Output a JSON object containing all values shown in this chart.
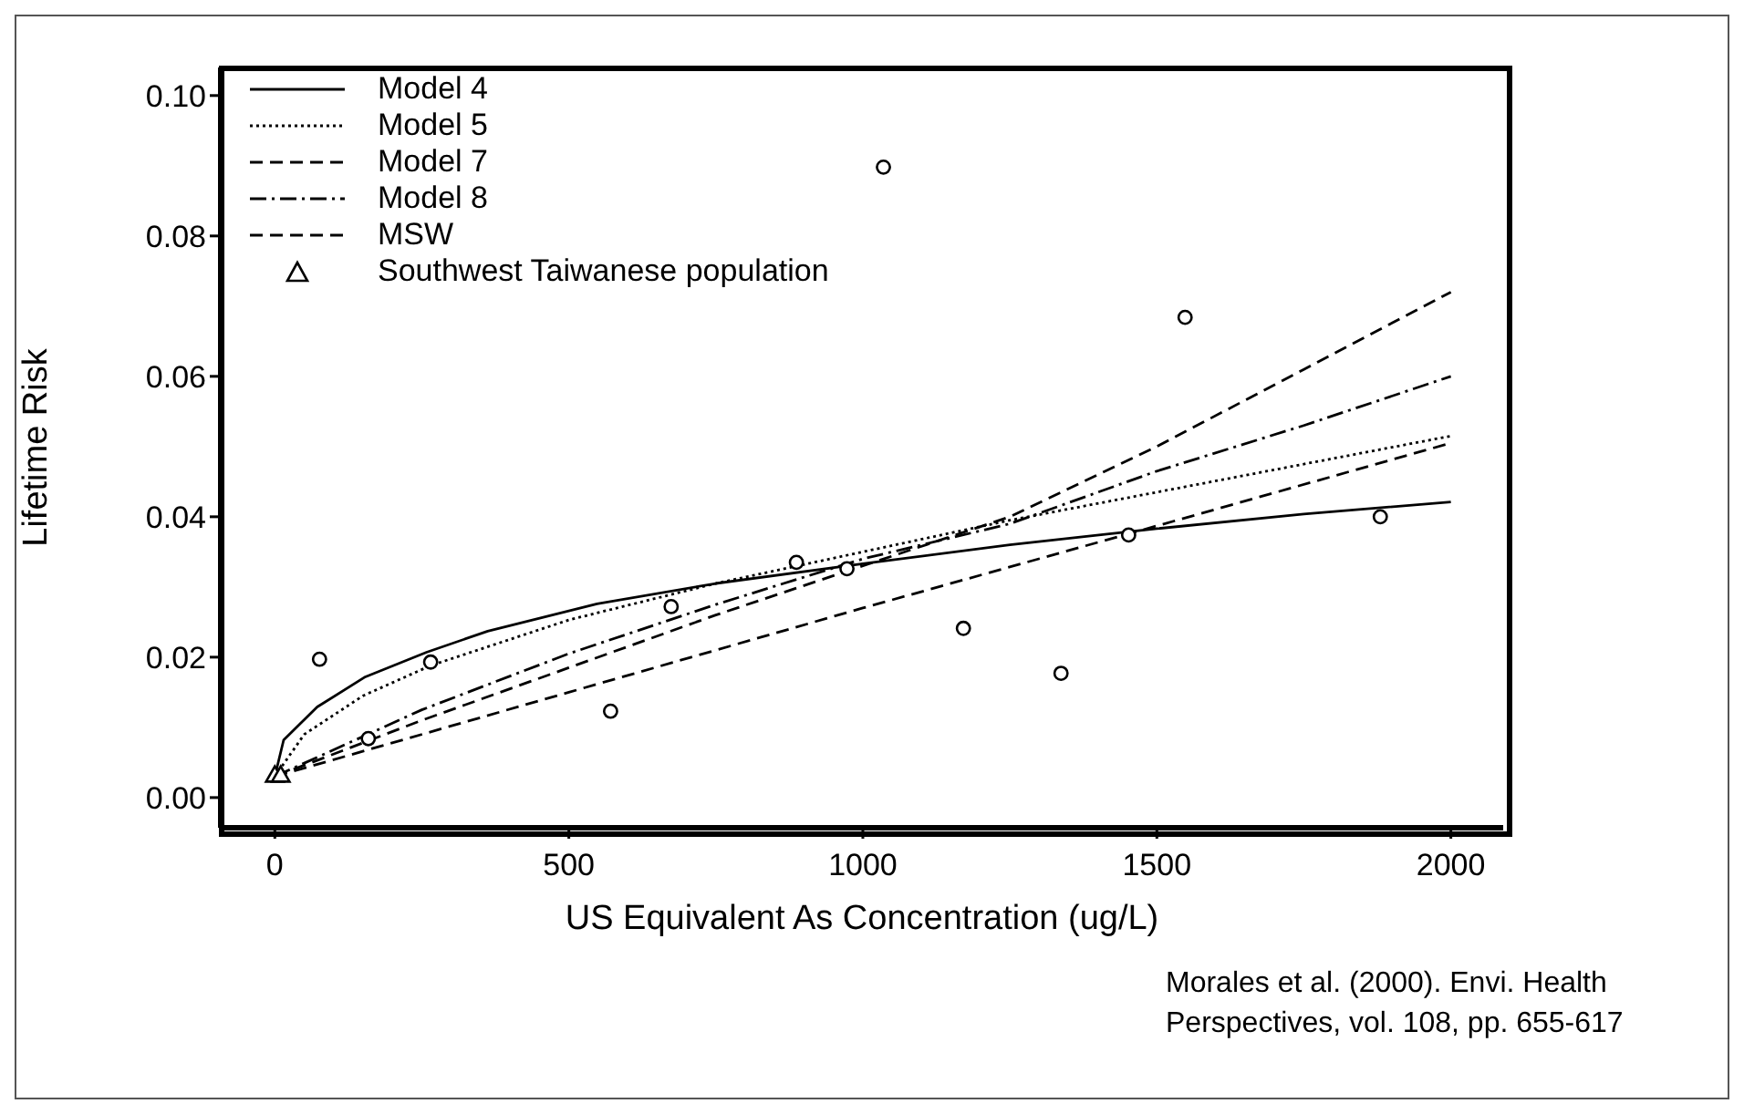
{
  "chart_data": {
    "type": "line",
    "xlabel": "US Equivalent As Concentration (ug/L)",
    "ylabel": "Lifetime Risk",
    "xlim": [
      -92,
      2089
    ],
    "ylim": [
      -0.0043,
      0.104
    ],
    "xticks": [
      0,
      500,
      1000,
      1500,
      2000
    ],
    "yticks": [
      {
        "value": 0,
        "label": "0.00"
      },
      {
        "value": 0.02,
        "label": "0.02"
      },
      {
        "value": 0.04,
        "label": "0.04"
      },
      {
        "value": 0.06,
        "label": "0.06"
      },
      {
        "value": 0.08,
        "label": "0.08"
      },
      {
        "value": 0.1,
        "label": "0.10"
      }
    ],
    "grid": false,
    "legend": "top left",
    "annotations": [
      "Morales et al. (2000). Envi. Health Perspectives, vol. 108, pp. 655-617"
    ],
    "series": [
      {
        "name": "Model 4",
        "type": "line",
        "color": "#000000",
        "line_style": "solid",
        "marker": "none",
        "x": [
          0,
          15,
          72,
          154,
          258,
          362,
          548,
          750,
          1000,
          1250,
          1500,
          1750,
          2000
        ],
        "values": [
          0.003,
          0.0082,
          0.0129,
          0.0172,
          0.0207,
          0.0237,
          0.0276,
          0.0305,
          0.0333,
          0.036,
          0.0383,
          0.0404,
          0.0421
        ]
      },
      {
        "name": "Model 5",
        "type": "line",
        "color": "#000000",
        "line_style": "dotted",
        "marker": "none",
        "x": [
          0,
          50,
          150,
          265,
          500,
          750,
          1000,
          1250,
          1500,
          1750,
          2000
        ],
        "values": [
          0.003,
          0.009,
          0.0145,
          0.0188,
          0.0253,
          0.0305,
          0.035,
          0.0395,
          0.0435,
          0.0475,
          0.0515
        ]
      },
      {
        "name": "Model 7",
        "type": "line",
        "color": "#000000",
        "line_style": "dashed",
        "marker": "none",
        "x": [
          0,
          250,
          500,
          750,
          1000,
          1250,
          1500,
          1750,
          2000
        ],
        "values": [
          0.003,
          0.011,
          0.0185,
          0.026,
          0.033,
          0.04,
          0.05,
          0.061,
          0.072
        ]
      },
      {
        "name": "Model 8",
        "type": "line",
        "color": "#000000",
        "line_style": "dashdot",
        "marker": "none",
        "x": [
          0,
          250,
          500,
          750,
          1000,
          1250,
          1500,
          1750,
          2000
        ],
        "values": [
          0.003,
          0.0125,
          0.0205,
          0.0275,
          0.034,
          0.039,
          0.0465,
          0.053,
          0.06
        ]
      },
      {
        "name": "MSW",
        "type": "line",
        "color": "#000000",
        "line_style": "dashed",
        "marker": "none",
        "x": [
          0,
          500,
          1000,
          1500,
          2000
        ],
        "values": [
          0.003,
          0.015,
          0.027,
          0.0387,
          0.0505
        ]
      },
      {
        "name": "Southwest Taiwanese population",
        "type": "scatter",
        "color": "#000000",
        "marker": "triangle",
        "x": [
          0,
          10
        ],
        "values": [
          0.003,
          0.003
        ]
      },
      {
        "type": "scatter",
        "color": "#000000",
        "marker": "circle",
        "x": [
          76,
          159,
          265,
          571,
          674,
          887,
          973,
          1035,
          1171,
          1337,
          1452,
          1548,
          1880
        ],
        "values": [
          0.0197,
          0.0084,
          0.0193,
          0.0123,
          0.0272,
          0.0335,
          0.0326,
          0.0898,
          0.0241,
          0.0177,
          0.0374,
          0.0684,
          0.04
        ]
      }
    ]
  }
}
